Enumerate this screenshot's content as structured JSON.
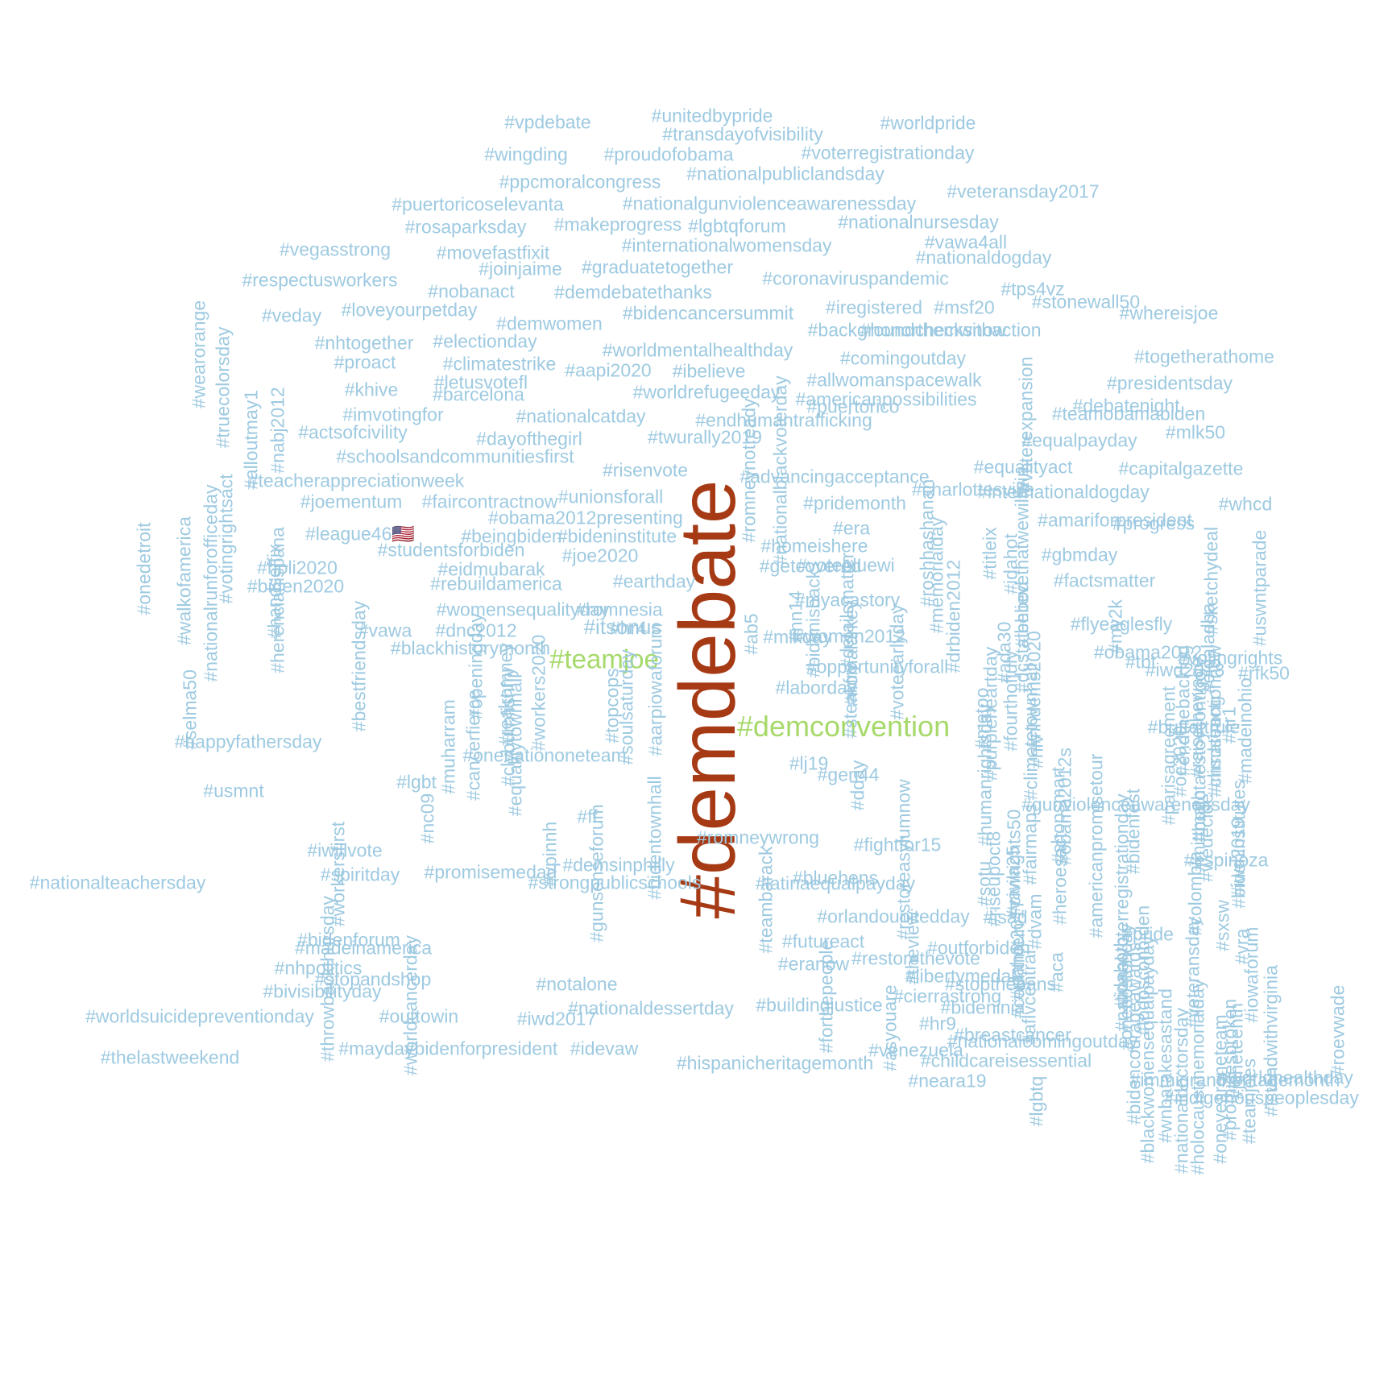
{
  "colors": {
    "background": "#ffffff",
    "tier_small": "#9ecae1",
    "tier_medium": "#a6d96a",
    "tier_large": "#a63a15"
  },
  "words": [
    {
      "text": "#demdebate",
      "tier": "large"
    },
    {
      "text": "#demconvention",
      "tier": "medium"
    },
    {
      "text": "#teamjoe",
      "tier": "medium"
    },
    {
      "text": "#itsonus",
      "tier": "small"
    },
    {
      "text": "#vpdebate",
      "tier": "small"
    },
    {
      "text": "#unitedbypride",
      "tier": "small"
    },
    {
      "text": "#worldpride",
      "tier": "small"
    },
    {
      "text": "#transdayofvisibility",
      "tier": "small"
    },
    {
      "text": "#wingding",
      "tier": "small"
    },
    {
      "text": "#proudofobama",
      "tier": "small"
    },
    {
      "text": "#voterregistrationday",
      "tier": "small"
    },
    {
      "text": "#nationalpubliclandsday",
      "tier": "small"
    },
    {
      "text": "#ppcmoralcongress",
      "tier": "small"
    },
    {
      "text": "#veteransday2017",
      "tier": "small"
    },
    {
      "text": "#puertoricoselevanta",
      "tier": "small"
    },
    {
      "text": "#nationalgunviolenceawarenessday",
      "tier": "small"
    },
    {
      "text": "#rosaparksday",
      "tier": "small"
    },
    {
      "text": "#makeprogress",
      "tier": "small"
    },
    {
      "text": "#lgbtqforum",
      "tier": "small"
    },
    {
      "text": "#nationalnursesday",
      "tier": "small"
    },
    {
      "text": "#vegasstrong",
      "tier": "small"
    },
    {
      "text": "#movefastfixit",
      "tier": "small"
    },
    {
      "text": "#internationalwomensday",
      "tier": "small"
    },
    {
      "text": "#vawa4all",
      "tier": "small"
    },
    {
      "text": "#nationaldogday",
      "tier": "small"
    },
    {
      "text": "#joinjaime",
      "tier": "small"
    },
    {
      "text": "#graduatetogether",
      "tier": "small"
    },
    {
      "text": "#respectusworkers",
      "tier": "small"
    },
    {
      "text": "#coronaviruspandemic",
      "tier": "small"
    },
    {
      "text": "#stonewall50",
      "tier": "small"
    },
    {
      "text": "#nobanact",
      "tier": "small"
    },
    {
      "text": "#demdebatethanks",
      "tier": "small"
    },
    {
      "text": "#tps4vz",
      "tier": "small"
    },
    {
      "text": "#wearorange",
      "tier": "small"
    },
    {
      "text": "#truecolorsday",
      "tier": "small"
    },
    {
      "text": "#veday",
      "tier": "small"
    },
    {
      "text": "#loveyourpetday",
      "tier": "small"
    },
    {
      "text": "#demwomen",
      "tier": "small"
    },
    {
      "text": "#bidencancersummit",
      "tier": "small"
    },
    {
      "text": "#iregistered",
      "tier": "small"
    },
    {
      "text": "#msf20",
      "tier": "small"
    },
    {
      "text": "#whereisjoe",
      "tier": "small"
    },
    {
      "text": "#nhtogether",
      "tier": "small"
    },
    {
      "text": "#electionday",
      "tier": "small"
    },
    {
      "text": "#backgroundchecksnow",
      "tier": "small"
    },
    {
      "text": "#honorthemwithaction",
      "tier": "small"
    },
    {
      "text": "#worldmentalhealthday",
      "tier": "small"
    },
    {
      "text": "#proact",
      "tier": "small"
    },
    {
      "text": "#climatestrike",
      "tier": "small"
    },
    {
      "text": "#aapi2020",
      "tier": "small"
    },
    {
      "text": "#ibelieve",
      "tier": "small"
    },
    {
      "text": "#comingoutday",
      "tier": "small"
    },
    {
      "text": "#togetherathome",
      "tier": "small"
    },
    {
      "text": "#nabj2012",
      "tier": "small"
    },
    {
      "text": "#letusvotefl",
      "tier": "small"
    },
    {
      "text": "#allwomanspacewalk",
      "tier": "small"
    },
    {
      "text": "#khive",
      "tier": "small"
    },
    {
      "text": "#barcelona",
      "tier": "small"
    },
    {
      "text": "#worldrefugeeday",
      "tier": "small"
    },
    {
      "text": "#americanpossibilities",
      "tier": "small"
    },
    {
      "text": "#presidentsday",
      "tier": "small"
    },
    {
      "text": "#puertorico",
      "tier": "small"
    },
    {
      "text": "#imvotingfor",
      "tier": "small"
    },
    {
      "text": "#nationalcatday",
      "tier": "small"
    },
    {
      "text": "#endhumantrafficking",
      "tier": "small"
    },
    {
      "text": "#nationalblackvoterday",
      "tier": "small"
    },
    {
      "text": "#voterexpansion",
      "tier": "small"
    },
    {
      "text": "#debatenight",
      "tier": "small"
    },
    {
      "text": "#actsofcivility",
      "tier": "small"
    },
    {
      "text": "#dayofthegirl",
      "tier": "small"
    },
    {
      "text": "#twurally2019",
      "tier": "small"
    },
    {
      "text": "#mlk50",
      "tier": "small"
    },
    {
      "text": "#equalpayday",
      "tier": "small"
    },
    {
      "text": "#teamobamabiden",
      "tier": "small"
    },
    {
      "text": "#schoolsandcommunitiesfirst",
      "tier": "small"
    },
    {
      "text": "#alloutmay1",
      "tier": "small"
    },
    {
      "text": "#risenvote",
      "tier": "small"
    },
    {
      "text": "#romneynotready",
      "tier": "small"
    },
    {
      "text": "#equalityact",
      "tier": "small"
    },
    {
      "text": "#capitalgazette",
      "tier": "small"
    },
    {
      "text": "#onedetroit",
      "tier": "small"
    },
    {
      "text": "#teacherappreciationweek",
      "tier": "small"
    },
    {
      "text": "#advancingacceptance",
      "tier": "small"
    },
    {
      "text": "#votingrightsact",
      "tier": "small"
    },
    {
      "text": "#internationaldogday",
      "tier": "small"
    },
    {
      "text": "#joementum",
      "tier": "small"
    },
    {
      "text": "#faircontractnow",
      "tier": "small"
    },
    {
      "text": "#unionsforall",
      "tier": "small"
    },
    {
      "text": "#pridemonth",
      "tier": "small"
    },
    {
      "text": "#charlottesville",
      "tier": "small"
    },
    {
      "text": "#whcd",
      "tier": "small"
    },
    {
      "text": "#walkofamerica",
      "tier": "small"
    },
    {
      "text": "#obama2012presenting",
      "tier": "small"
    },
    {
      "text": "#ibelievethatwewillwin",
      "tier": "small"
    },
    {
      "text": "#amariforpresident",
      "tier": "small"
    },
    {
      "text": "#league46🇺🇸",
      "tier": "small"
    },
    {
      "text": "#beingbiden",
      "tier": "small"
    },
    {
      "text": "#bideninstitute",
      "tier": "small"
    },
    {
      "text": "#era",
      "tier": "small"
    },
    {
      "text": "#progress",
      "tier": "small"
    },
    {
      "text": "#nationalrunforofficeday",
      "tier": "small"
    },
    {
      "text": "#roshhashanah",
      "tier": "small"
    },
    {
      "text": "#homeishere",
      "tier": "small"
    },
    {
      "text": "#studentsforbiden",
      "tier": "small"
    },
    {
      "text": "#joe2020",
      "tier": "small"
    },
    {
      "text": "#votebluewi",
      "tier": "small"
    },
    {
      "text": "#gbmday",
      "tier": "small"
    },
    {
      "text": "#uswntparade",
      "tier": "small"
    },
    {
      "text": "#holi2020",
      "tier": "small"
    },
    {
      "text": "#eidmubarak",
      "tier": "small"
    },
    {
      "text": "#getcovered",
      "tier": "small"
    },
    {
      "text": "#sketchydeal",
      "tier": "small"
    },
    {
      "text": "#memorialday",
      "tier": "small"
    },
    {
      "text": "#titleix",
      "tier": "small"
    },
    {
      "text": "#idahot",
      "tier": "small"
    },
    {
      "text": "#biden2020",
      "tier": "small"
    },
    {
      "text": "#rebuildamerica",
      "tier": "small"
    },
    {
      "text": "#earthday",
      "tier": "small"
    },
    {
      "text": "#factsmatter",
      "tier": "small"
    },
    {
      "text": "#handsoffix",
      "tier": "small"
    },
    {
      "text": "#herenciahispana",
      "tier": "small"
    },
    {
      "text": "#drbiden2012",
      "tier": "small"
    },
    {
      "text": "#womensequalityday",
      "tier": "small"
    },
    {
      "text": "#romnesia",
      "tier": "small"
    },
    {
      "text": "#hr4",
      "tier": "small"
    },
    {
      "text": "#myacastory",
      "tier": "small"
    },
    {
      "text": "#detailsmatter",
      "tier": "small"
    },
    {
      "text": "#flyeaglesfly",
      "tier": "small"
    },
    {
      "text": "#bidenisback",
      "tier": "small"
    },
    {
      "text": "#nn14",
      "tier": "small"
    },
    {
      "text": "#vawa",
      "tier": "small"
    },
    {
      "text": "#obama2012",
      "tier": "small"
    },
    {
      "text": "#dnc2012",
      "tier": "small"
    },
    {
      "text": "#ab5",
      "tier": "small"
    },
    {
      "text": "#women2012",
      "tier": "small"
    },
    {
      "text": "#nomalarkey",
      "tier": "small"
    },
    {
      "text": "#my2k",
      "tier": "small"
    },
    {
      "text": "#mlkday",
      "tier": "small"
    },
    {
      "text": "#dcstatehood",
      "tier": "small"
    },
    {
      "text": "#blackhistorymonth",
      "tier": "small"
    },
    {
      "text": "#ada30",
      "tier": "small"
    },
    {
      "text": "#eidaladha",
      "tier": "small"
    },
    {
      "text": "#tbt",
      "tier": "small"
    },
    {
      "text": "#iwd2018",
      "tier": "small"
    },
    {
      "text": "#votingrights",
      "tier": "small"
    },
    {
      "text": "#selma50",
      "tier": "small"
    },
    {
      "text": "#bestfriendsday",
      "tier": "small"
    },
    {
      "text": "#voteearlyday",
      "tier": "small"
    },
    {
      "text": "#nhdems2020",
      "tier": "small"
    },
    {
      "text": "#raisethewage",
      "tier": "small"
    },
    {
      "text": "#openingday",
      "tier": "small"
    },
    {
      "text": "#opportunityforall",
      "tier": "small"
    },
    {
      "text": "#fourthofjuly",
      "tier": "small"
    },
    {
      "text": "#rfk50",
      "tier": "small"
    },
    {
      "text": "#purpleheartday",
      "tier": "small"
    },
    {
      "text": "#realromney",
      "tier": "small"
    },
    {
      "text": "#workers2020",
      "tier": "small"
    },
    {
      "text": "#soulsaturday",
      "tier": "small"
    },
    {
      "text": "#aarpiowaforum",
      "tier": "small"
    },
    {
      "text": "#climateactionnow",
      "tier": "small"
    },
    {
      "text": "#endthebacklog",
      "tier": "small"
    },
    {
      "text": "#hr1",
      "tier": "small"
    },
    {
      "text": "#buffettrule",
      "tier": "small"
    },
    {
      "text": "#madeinohio",
      "tier": "small"
    },
    {
      "text": "#msdstrong",
      "tier": "small"
    },
    {
      "text": "#oc2020",
      "tier": "small"
    },
    {
      "text": "#clyburnfishfry",
      "tier": "small"
    },
    {
      "text": "#onenationoneteam",
      "tier": "small"
    },
    {
      "text": "#topcops",
      "tier": "small"
    },
    {
      "text": "#laborday",
      "tier": "small"
    },
    {
      "text": "#steakfry",
      "tier": "small"
    },
    {
      "text": "#metoo",
      "tier": "small"
    },
    {
      "text": "#climatetownhall",
      "tier": "small"
    },
    {
      "text": "#hiv",
      "tier": "small"
    },
    {
      "text": "#parisagreement",
      "tier": "small"
    },
    {
      "text": "#bogotaestoycontigo",
      "tier": "small"
    },
    {
      "text": "#happyfathersday",
      "tier": "small"
    },
    {
      "text": "#muharram",
      "tier": "small"
    },
    {
      "text": "#cancerfierce",
      "tier": "small"
    },
    {
      "text": "#equalitytownhall",
      "tier": "small"
    },
    {
      "text": "#lj19",
      "tier": "small"
    },
    {
      "text": "#gen44",
      "tier": "small"
    },
    {
      "text": "#dday",
      "tier": "small"
    },
    {
      "text": "#humanrightsday",
      "tier": "small"
    },
    {
      "text": "#fairmaps",
      "tier": "small"
    },
    {
      "text": "#shopsmart",
      "tier": "small"
    },
    {
      "text": "#obama2012s",
      "tier": "small"
    },
    {
      "text": "#bidenfest",
      "tier": "small"
    },
    {
      "text": "#mittmath",
      "tier": "small"
    },
    {
      "text": "#usmnt",
      "tier": "small"
    },
    {
      "text": "#lgbt",
      "tier": "small"
    },
    {
      "text": "#nc09",
      "tier": "small"
    },
    {
      "text": "#ff",
      "tier": "small"
    },
    {
      "text": "#bidentownhall",
      "tier": "small"
    },
    {
      "text": "#romneywrong",
      "tier": "small"
    },
    {
      "text": "#fightfor15",
      "tier": "small"
    },
    {
      "text": "#americanpromisetour",
      "tier": "small"
    },
    {
      "text": "#gunviolenceawarenessday",
      "tier": "small"
    },
    {
      "text": "#wedecide",
      "tier": "small"
    },
    {
      "text": "#bideninstitutes",
      "tier": "small"
    },
    {
      "text": "#iwillvote",
      "tier": "small"
    },
    {
      "text": "#vpinnh",
      "tier": "small"
    },
    {
      "text": "#gunsenseforum",
      "tier": "small"
    },
    {
      "text": "#demsinphilly",
      "tier": "small"
    },
    {
      "text": "#latinaequalpayday",
      "tier": "small"
    },
    {
      "text": "#restoreasylumnow",
      "tier": "small"
    },
    {
      "text": "#sotu",
      "tier": "small"
    },
    {
      "text": "#civilrights50",
      "tier": "small"
    },
    {
      "text": "#workersfirst",
      "tier": "small"
    },
    {
      "text": "#spiritday",
      "tier": "small"
    },
    {
      "text": "#promisemedad",
      "tier": "small"
    },
    {
      "text": "#bluehens",
      "tier": "small"
    },
    {
      "text": "#isad",
      "tier": "small"
    },
    {
      "text": "#dvam",
      "tier": "small"
    },
    {
      "text": "#heroesact",
      "tier": "small"
    },
    {
      "text": "#nationalteachersday",
      "tier": "small"
    },
    {
      "text": "#strongpublicschools",
      "tier": "small"
    },
    {
      "text": "#teambarack",
      "tier": "small"
    },
    {
      "text": "#orlandounitedday",
      "tier": "small"
    },
    {
      "text": "#riseupoct8",
      "tier": "small"
    },
    {
      "text": "#vawa25",
      "tier": "small"
    },
    {
      "text": "#nationalvoterregistrationday",
      "tier": "small"
    },
    {
      "text": "#sxsw",
      "tier": "small"
    },
    {
      "text": "#colombia",
      "tier": "small"
    },
    {
      "text": "#espinoza",
      "tier": "small"
    },
    {
      "text": "#iwd2019",
      "tier": "small"
    },
    {
      "text": "#pride",
      "tier": "small"
    },
    {
      "text": "#bidenforum",
      "tier": "small"
    },
    {
      "text": "#theview",
      "tier": "small"
    },
    {
      "text": "#idahot2017",
      "tier": "small"
    },
    {
      "text": "#idahotb",
      "tier": "small"
    },
    {
      "text": "#madeinamerica",
      "tier": "small"
    },
    {
      "text": "#futureact",
      "tier": "small"
    },
    {
      "text": "#restorethevote",
      "tier": "small"
    },
    {
      "text": "#outforbiden",
      "tier": "small"
    },
    {
      "text": "#countmein",
      "tier": "small"
    },
    {
      "text": "#aflvcentral",
      "tier": "small"
    },
    {
      "text": "#aca",
      "tier": "small"
    },
    {
      "text": "#veteransday",
      "tier": "small"
    },
    {
      "text": "#vra",
      "tier": "small"
    },
    {
      "text": "#iowaforum",
      "tier": "small"
    },
    {
      "text": "#nhpolitics",
      "tier": "small"
    },
    {
      "text": "#stopandshop",
      "tier": "small"
    },
    {
      "text": "#notalone",
      "tier": "small"
    },
    {
      "text": "#eranow",
      "tier": "small"
    },
    {
      "text": "#libertymedal",
      "tier": "small"
    },
    {
      "text": "#stopthebans",
      "tier": "small"
    },
    {
      "text": "#onebostonday",
      "tier": "small"
    },
    {
      "text": "#todosconbiden",
      "tier": "small"
    },
    {
      "text": "#bivisibilityday",
      "tier": "small"
    },
    {
      "text": "#throwbackthursday",
      "tier": "small"
    },
    {
      "text": "#worldcancerday",
      "tier": "small"
    },
    {
      "text": "#forthepeople",
      "tier": "small"
    },
    {
      "text": "#cierrastrong",
      "tier": "small"
    },
    {
      "text": "#bideninia",
      "tier": "small"
    },
    {
      "text": "#worldsuicidepreventionday",
      "tier": "small"
    },
    {
      "text": "#outtowin",
      "tier": "small"
    },
    {
      "text": "#iwd2017",
      "tier": "small"
    },
    {
      "text": "#nationaldessertday",
      "tier": "small"
    },
    {
      "text": "#buildingjustice",
      "tier": "small"
    },
    {
      "text": "#asyouare",
      "tier": "small"
    },
    {
      "text": "#hr9",
      "tier": "small"
    },
    {
      "text": "#breastcancer",
      "tier": "small"
    },
    {
      "text": "#nationalcomingoutday",
      "tier": "small"
    },
    {
      "text": "#bidencourageawards",
      "tier": "small"
    },
    {
      "text": "#blackwomensequalpayday",
      "tier": "small"
    },
    {
      "text": "#thelastweekend",
      "tier": "small"
    },
    {
      "text": "#mayday",
      "tier": "small"
    },
    {
      "text": "#bidenforpresident",
      "tier": "small"
    },
    {
      "text": "#idevaw",
      "tier": "small"
    },
    {
      "text": "#hispanicheritagemonth",
      "tier": "small"
    },
    {
      "text": "#venezuela",
      "tier": "small"
    },
    {
      "text": "#neara19",
      "tier": "small"
    },
    {
      "text": "#childcareisessential",
      "tier": "small"
    },
    {
      "text": "#lgbtq",
      "tier": "small"
    },
    {
      "text": "#wnbatakesastand",
      "tier": "small"
    },
    {
      "text": "#nationaldoctorsday",
      "tier": "small"
    },
    {
      "text": "#holocaustmemorialday",
      "tier": "small"
    },
    {
      "text": "#oneyearoneteam",
      "tier": "small"
    },
    {
      "text": "#promisesbroken",
      "tier": "small"
    },
    {
      "text": "#immigrantheritagemonth",
      "tier": "small"
    },
    {
      "text": "#juneteenth",
      "tier": "small"
    },
    {
      "text": "#teamjoes",
      "tier": "small"
    },
    {
      "text": "#indigenouspeoplesday",
      "tier": "small"
    },
    {
      "text": "#istandwithvirginia",
      "tier": "small"
    },
    {
      "text": "#worldhealthday",
      "tier": "small"
    },
    {
      "text": "#roevwade",
      "tier": "small"
    },
    {
      "text": "#istandwithmashpee",
      "tier": "small"
    },
    {
      "text": "#nativewomensequalpay",
      "tier": "small"
    },
    {
      "text": "#worldteachersday",
      "tier": "small"
    },
    {
      "text": "#saveapprenticeshipweek",
      "tier": "small"
    },
    {
      "text": "#nationalicecreamday",
      "tier": "small"
    },
    {
      "text": "#takeyourchildtoworkday",
      "tier": "small"
    },
    {
      "text": "#worldaidsday",
      "tier": "small"
    },
    {
      "text": "#paycheckfairnessact",
      "tier": "small"
    },
    {
      "text": "#vawa23",
      "tier": "small"
    },
    {
      "text": "#powmiarecognitionday",
      "tier": "small"
    },
    {
      "text": "#strikeforblacklives",
      "tier": "small"
    },
    {
      "text": "#smallbusinesssaturday",
      "tier": "small"
    },
    {
      "text": "#womenshistorymonth",
      "tier": "small"
    }
  ]
}
